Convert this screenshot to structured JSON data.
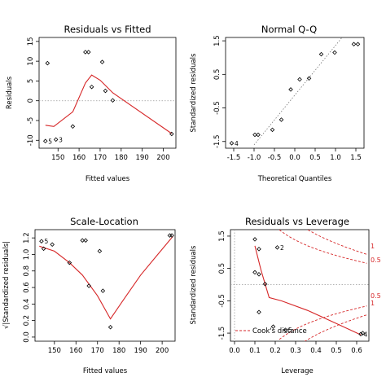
{
  "chart_data": [
    {
      "type": "scatter",
      "title": "Residuals vs Fitted",
      "xlabel": "Fitted values",
      "ylabel": "Residuals",
      "xlim": [
        141,
        206
      ],
      "ylim": [
        -12,
        16
      ],
      "xticks": [
        150,
        160,
        170,
        180,
        190,
        200
      ],
      "yticks": [
        -10,
        -5,
        0,
        5,
        10,
        15
      ],
      "reference_line": {
        "y": 0,
        "style": "dotted",
        "color": "#999999"
      },
      "points": [
        {
          "x": 144,
          "y": -10.2,
          "label": "5"
        },
        {
          "x": 145,
          "y": 9.5,
          "label": ""
        },
        {
          "x": 149,
          "y": -9.8,
          "label": "3"
        },
        {
          "x": 157,
          "y": -6.5,
          "label": ""
        },
        {
          "x": 163,
          "y": 12.3,
          "label": ""
        },
        {
          "x": 164.5,
          "y": 12.3,
          "label": ""
        },
        {
          "x": 166,
          "y": 3.5,
          "label": ""
        },
        {
          "x": 171,
          "y": 9.8,
          "label": ""
        },
        {
          "x": 172.5,
          "y": 2.5,
          "label": ""
        },
        {
          "x": 176,
          "y": 0.1,
          "label": ""
        },
        {
          "x": 204,
          "y": -8.4,
          "label": ""
        }
      ],
      "smooth": {
        "color": "#d62728",
        "x": [
          144,
          148,
          157,
          163,
          166,
          170,
          176,
          204
        ],
        "y": [
          -6.2,
          -6.5,
          -2.8,
          4.5,
          6.5,
          5.2,
          2.0,
          -8.3
        ]
      }
    },
    {
      "type": "scatter",
      "title": "Normal Q-Q",
      "xlabel": "Theoretical Quantiles",
      "ylabel": "Standardized residuals",
      "xlim": [
        -1.7,
        1.7
      ],
      "ylim": [
        -1.7,
        1.6
      ],
      "xticks": [
        -1.5,
        -1.0,
        -0.5,
        0.0,
        0.5,
        1.0,
        1.5
      ],
      "xticklabels": [
        "-1.5",
        "-1.0",
        "-0.5",
        "0.0",
        "0.5",
        "1.0",
        "1.5"
      ],
      "yticks": [
        -1.5,
        -0.5,
        0.5,
        1.5
      ],
      "yticklabels": [
        "-1.5",
        "-0.5",
        "0.5",
        "1.5"
      ],
      "reference_line": {
        "points": [
          [
            -1.0,
            -1.6
          ],
          [
            1.7,
            2.4
          ]
        ],
        "style": "dotted",
        "color": "#777777"
      },
      "points": [
        {
          "x": -1.55,
          "y": -1.55,
          "label": "4"
        },
        {
          "x": -0.98,
          "y": -1.3,
          "label": ""
        },
        {
          "x": -0.9,
          "y": -1.3,
          "label": ""
        },
        {
          "x": -0.55,
          "y": -1.15,
          "label": ""
        },
        {
          "x": -0.33,
          "y": -0.85,
          "label": ""
        },
        {
          "x": -0.1,
          "y": 0.05,
          "label": ""
        },
        {
          "x": 0.12,
          "y": 0.35,
          "label": ""
        },
        {
          "x": 0.35,
          "y": 0.38,
          "label": ""
        },
        {
          "x": 0.65,
          "y": 1.1,
          "label": ""
        },
        {
          "x": 0.98,
          "y": 1.15,
          "label": ""
        },
        {
          "x": 1.45,
          "y": 1.4,
          "label": ""
        },
        {
          "x": 1.55,
          "y": 1.4,
          "label": ""
        }
      ]
    },
    {
      "type": "scatter",
      "title": "Scale-Location",
      "xlabel": "Fitted values",
      "ylabel": "√|Standardized residuals|",
      "xlim": [
        141,
        206
      ],
      "ylim": [
        -0.05,
        1.3
      ],
      "xticks": [
        150,
        160,
        170,
        180,
        190,
        200
      ],
      "yticks": [
        0.0,
        0.2,
        0.4,
        0.6,
        0.8,
        1.0,
        1.2
      ],
      "yticklabels": [
        "0.0",
        "0.2",
        "0.4",
        "0.6",
        "0.8",
        "1.0",
        "1.2"
      ],
      "points": [
        {
          "x": 144,
          "y": 1.16,
          "label": "5"
        },
        {
          "x": 145,
          "y": 1.07,
          "label": ""
        },
        {
          "x": 149,
          "y": 1.12,
          "label": ""
        },
        {
          "x": 157,
          "y": 0.9,
          "label": ""
        },
        {
          "x": 163,
          "y": 1.17,
          "label": ""
        },
        {
          "x": 164.5,
          "y": 1.17,
          "label": ""
        },
        {
          "x": 166,
          "y": 0.62,
          "label": ""
        },
        {
          "x": 171,
          "y": 1.04,
          "label": ""
        },
        {
          "x": 172.5,
          "y": 0.56,
          "label": ""
        },
        {
          "x": 176,
          "y": 0.12,
          "label": ""
        },
        {
          "x": 203.5,
          "y": 1.23,
          "label": ""
        },
        {
          "x": 204.5,
          "y": 1.23,
          "label": ""
        }
      ],
      "smooth": {
        "color": "#d62728",
        "x": [
          143,
          150,
          157,
          163,
          170,
          176,
          182,
          190,
          198,
          205
        ],
        "y": [
          1.1,
          1.04,
          0.9,
          0.75,
          0.5,
          0.22,
          0.45,
          0.75,
          1.0,
          1.22
        ]
      }
    },
    {
      "type": "scatter",
      "title": "Residuals vs Leverage",
      "xlabel": "Leverage",
      "ylabel": "Standardized residuals",
      "xlim": [
        -0.02,
        0.66
      ],
      "ylim": [
        -1.75,
        1.7
      ],
      "xticks": [
        0.0,
        0.1,
        0.2,
        0.3,
        0.4,
        0.5,
        0.6
      ],
      "xticklabels": [
        "0.0",
        "0.1",
        "0.2",
        "0.3",
        "0.4",
        "0.5",
        "0.6"
      ],
      "yticks": [
        -1.5,
        -0.5,
        0.5,
        1.5
      ],
      "yticklabels": [
        "-1.5",
        "-0.5",
        "0.5",
        "1.5"
      ],
      "reference_line": {
        "y": 0,
        "style": "dotted",
        "color": "#999999"
      },
      "points": [
        {
          "x": 0.1,
          "y": 1.4,
          "label": ""
        },
        {
          "x": 0.12,
          "y": 1.1,
          "label": ""
        },
        {
          "x": 0.1,
          "y": 0.38,
          "label": ""
        },
        {
          "x": 0.12,
          "y": 0.32,
          "label": ""
        },
        {
          "x": 0.15,
          "y": 0.02,
          "label": ""
        },
        {
          "x": 0.12,
          "y": -0.85,
          "label": ""
        },
        {
          "x": 0.21,
          "y": 1.15,
          "label": "2"
        },
        {
          "x": 0.19,
          "y": -1.3,
          "label": ""
        },
        {
          "x": 0.25,
          "y": -1.4,
          "label": "5"
        },
        {
          "x": 0.62,
          "y": -1.53,
          "label": "4"
        },
        {
          "x": 0.63,
          "y": -1.5,
          "label": ""
        }
      ],
      "smooth": {
        "color": "#d62728",
        "x": [
          0.1,
          0.13,
          0.17,
          0.23,
          0.36,
          0.5,
          0.62
        ],
        "y": [
          1.2,
          0.45,
          -0.4,
          -0.5,
          -0.8,
          -1.2,
          -1.55
        ]
      },
      "cooks_distance": {
        "label": "Cook's distance",
        "color": "#d62728",
        "contour_labels": {
          "upper": [
            "1",
            "0.5"
          ],
          "lower": [
            "0.5",
            "1"
          ]
        }
      }
    }
  ]
}
